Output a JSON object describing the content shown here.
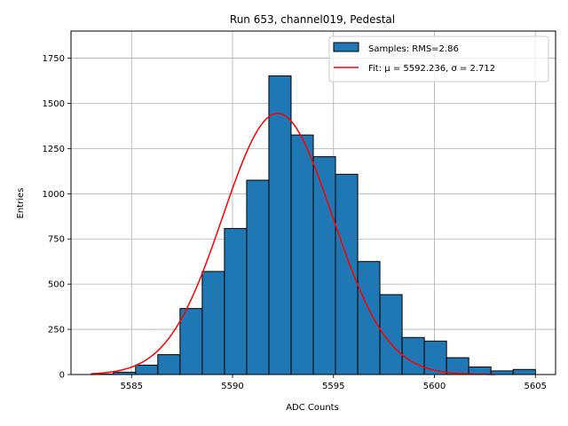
{
  "chart_data": {
    "type": "bar",
    "title": "Run 653, channel019, Pedestal",
    "xlabel": "ADC Counts",
    "ylabel": "Entries",
    "xlim": [
      5582,
      5606
    ],
    "ylim": [
      0,
      1900
    ],
    "xticks": [
      5585,
      5590,
      5595,
      5600,
      5605
    ],
    "yticks": [
      0,
      250,
      500,
      750,
      1000,
      1250,
      1500,
      1750
    ],
    "grid": true,
    "legend_position": "top-right",
    "bin_width": 1.1,
    "histogram": {
      "name": "Samples: RMS=2.86",
      "color": "#1f77b4",
      "bins": [
        {
          "x0": 5583.0,
          "count": 3
        },
        {
          "x0": 5584.1,
          "count": 13
        },
        {
          "x0": 5585.2,
          "count": 52
        },
        {
          "x0": 5586.3,
          "count": 110
        },
        {
          "x0": 5587.4,
          "count": 365
        },
        {
          "x0": 5588.5,
          "count": 570
        },
        {
          "x0": 5589.6,
          "count": 808
        },
        {
          "x0": 5590.7,
          "count": 1075
        },
        {
          "x0": 5591.8,
          "count": 1652
        },
        {
          "x0": 5592.9,
          "count": 1325
        },
        {
          "x0": 5594.0,
          "count": 1205
        },
        {
          "x0": 5595.1,
          "count": 1108
        },
        {
          "x0": 5596.2,
          "count": 625
        },
        {
          "x0": 5597.3,
          "count": 442
        },
        {
          "x0": 5598.4,
          "count": 205
        },
        {
          "x0": 5599.5,
          "count": 185
        },
        {
          "x0": 5600.6,
          "count": 93
        },
        {
          "x0": 5601.7,
          "count": 42
        },
        {
          "x0": 5602.8,
          "count": 20
        },
        {
          "x0": 5603.9,
          "count": 28
        }
      ]
    },
    "fit": {
      "name": "Fit: μ = 5592.236, σ = 2.712",
      "color": "#ff0000",
      "mu": 5592.236,
      "sigma": 2.712,
      "amplitude": 1445,
      "x_range": [
        5583,
        5603
      ]
    }
  }
}
